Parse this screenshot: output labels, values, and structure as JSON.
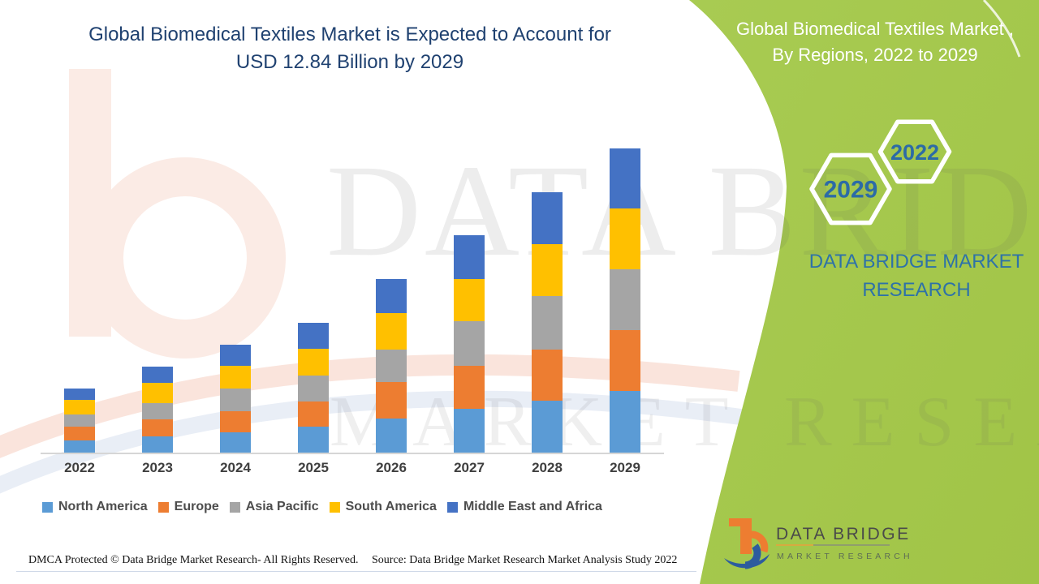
{
  "title": {
    "line1": "Global Biomedical Textiles Market is Expected to Account for",
    "line2": "USD 12.84 Billion by 2029"
  },
  "panel": {
    "title_line1": "Global Biomedical Textiles Market ,",
    "title_line2": "By Regions, 2022 to 2029",
    "hex_year_right": "2022",
    "hex_year_left": "2029",
    "brand_text": "DATA BRIDGE MARKET RESEARCH",
    "green_color": "#A5C84E",
    "hex_text_color": "#2C6BA6"
  },
  "logo": {
    "name": "DATA BRIDGE",
    "subtitle": "MARKET RESEARCH"
  },
  "watermark": {
    "row1": "DATA BRIDGE",
    "row2": "MARKET RESEARCH"
  },
  "footer": {
    "dmca": "DMCA Protected © Data Bridge Market Research- All Rights Reserved.",
    "source": "Source: Data Bridge Market Research Market Analysis Study 2022"
  },
  "chart_data": {
    "type": "bar",
    "stacked": true,
    "unit": "USD Billion (estimated from bar heights; 2029 total labeled 12.84)",
    "categories": [
      "2022",
      "2023",
      "2024",
      "2025",
      "2026",
      "2027",
      "2028",
      "2029"
    ],
    "series": [
      {
        "name": "North America",
        "color": "#5B9BD5",
        "values": [
          0.51,
          0.68,
          0.86,
          1.1,
          1.44,
          1.85,
          2.19,
          2.6
        ]
      },
      {
        "name": "Europe",
        "color": "#ED7D31",
        "values": [
          0.58,
          0.72,
          0.89,
          1.06,
          1.54,
          1.81,
          2.16,
          2.57
        ]
      },
      {
        "name": "Asia Pacific",
        "color": "#A5A5A5",
        "values": [
          0.51,
          0.68,
          0.96,
          1.1,
          1.37,
          1.88,
          2.26,
          2.57
        ]
      },
      {
        "name": "South America",
        "color": "#FFC000",
        "values": [
          0.62,
          0.86,
          0.96,
          1.13,
          1.54,
          1.78,
          2.19,
          2.57
        ]
      },
      {
        "name": "Middle East and Africa",
        "color": "#4472C4",
        "values": [
          0.48,
          0.68,
          0.89,
          1.1,
          1.44,
          1.85,
          2.19,
          2.53
        ]
      }
    ],
    "totals": [
      2.7,
      3.62,
      4.56,
      5.49,
      7.33,
      9.17,
      10.99,
      12.84
    ],
    "xlabel": "",
    "ylabel": "",
    "yaxis_visible": false,
    "grid": false,
    "legend_position": "bottom"
  }
}
